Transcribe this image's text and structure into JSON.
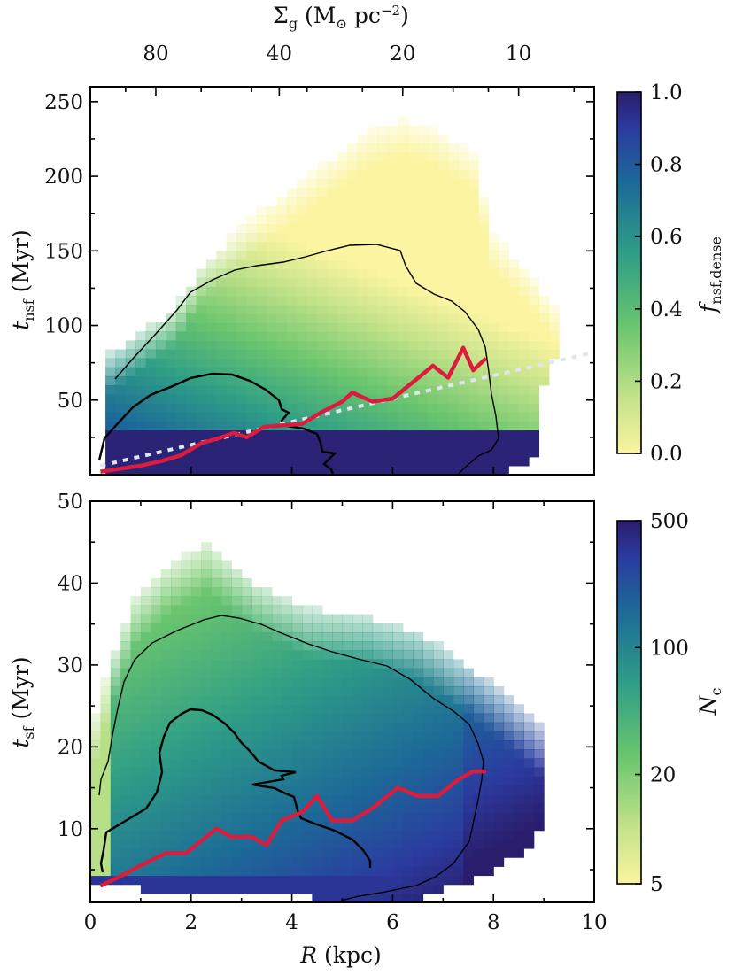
{
  "chart_data": [
    {
      "type": "heatmap",
      "panel": "top",
      "ylabel": "t_nsf (Myr)",
      "ylabel_main": "t",
      "ylabel_sub": "nsf",
      "ylabel_unit": " (Myr)",
      "ylim": [
        0,
        260
      ],
      "xlim": [
        0,
        10
      ],
      "yticks": [
        50,
        100,
        150,
        200,
        250
      ],
      "top_axis_label_main": "Σ",
      "top_axis_label_sub": "g",
      "top_axis_label_unit": " (M",
      "top_axis_label_sun": "⊙",
      "top_axis_label_pc": " pc",
      "top_axis_label_exp": "−2",
      "top_axis_label_close": ")",
      "top_ticks": [
        {
          "label": "80",
          "R": 1.3
        },
        {
          "label": "40",
          "R": 3.75
        },
        {
          "label": "20",
          "R": 6.2
        },
        {
          "label": "10",
          "R": 8.5
        }
      ],
      "colorbar": {
        "label_main": "f",
        "label_sub": "nsf,dense",
        "scale": "linear",
        "ticks": [
          "0.0",
          "0.2",
          "0.4",
          "0.6",
          "0.8",
          "1.0"
        ],
        "tick_values": [
          0.0,
          0.2,
          0.4,
          0.6,
          0.8,
          1.0
        ]
      },
      "series": [
        {
          "name": "median t_nsf",
          "color": "#dc1c3c",
          "x": [
            0.2,
            0.6,
            1.0,
            1.4,
            1.8,
            2.2,
            2.6,
            2.85,
            3.1,
            3.45,
            3.8,
            4.2,
            4.6,
            5.0,
            5.2,
            5.6,
            6.0,
            6.4,
            6.8,
            7.1,
            7.4,
            7.6,
            7.85
          ],
          "y": [
            2,
            4,
            6,
            9,
            13,
            21,
            25,
            28,
            25,
            32,
            33,
            34,
            42,
            49,
            55,
            49,
            51,
            62,
            73,
            65,
            85,
            70,
            78
          ]
        },
        {
          "name": "linear fit",
          "style": "dotted",
          "color": "#dfe6f2",
          "x": [
            0.2,
            10
          ],
          "y": [
            6,
            82
          ]
        }
      ]
    },
    {
      "type": "heatmap",
      "panel": "bottom",
      "xlabel": "R (kpc)",
      "xlabel_main": "R",
      "xlabel_unit": " (kpc)",
      "ylabel": "t_sf (Myr)",
      "ylabel_main": "t",
      "ylabel_sub": "sf",
      "ylabel_unit": " (Myr)",
      "ylim": [
        1,
        50
      ],
      "xlim": [
        0,
        10
      ],
      "xticks": [
        0,
        2,
        4,
        6,
        8,
        10
      ],
      "yticks": [
        10,
        20,
        30,
        40,
        50
      ],
      "colorbar": {
        "label_main": "N",
        "label_sub": "c",
        "scale": "log",
        "ticks": [
          "5",
          "20",
          "100",
          "500"
        ],
        "tick_values": [
          5,
          20,
          100,
          500
        ]
      },
      "series": [
        {
          "name": "median t_sf",
          "color": "#dc1c3c",
          "x": [
            0.2,
            0.6,
            1.0,
            1.5,
            1.9,
            2.1,
            2.5,
            2.8,
            3.2,
            3.5,
            3.8,
            4.2,
            4.5,
            4.8,
            5.2,
            5.6,
            6.1,
            6.5,
            6.9,
            7.3,
            7.6,
            7.85
          ],
          "y": [
            3,
            4.2,
            5.5,
            7,
            7,
            8,
            10,
            9,
            9,
            8,
            11,
            12,
            14,
            11,
            11,
            12.5,
            15,
            14,
            14,
            16,
            17,
            17
          ]
        }
      ]
    }
  ]
}
